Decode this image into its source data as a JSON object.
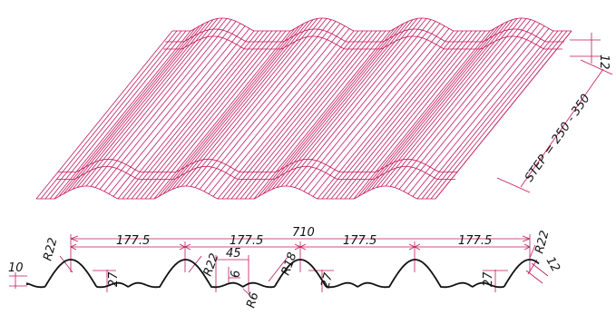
{
  "colors": {
    "line": "#c2185b",
    "profile": "#111111",
    "background": "#ffffff"
  },
  "labels": {
    "height_top": "12",
    "step": "STEP = 250 - 350",
    "total_width": "710",
    "pitch_1": "177.5",
    "pitch_2": "177.5",
    "pitch_3": "177.5",
    "pitch_4": "177.5",
    "height_10": "10",
    "radius_left": "R22",
    "rib_27_a": "27",
    "radius_mid": "R22",
    "rib_6": "6",
    "span_45": "45",
    "radius_6": "R6",
    "radius_18": "R18",
    "rib_27_b": "27",
    "rib_27_c": "27",
    "radius_right": "R22",
    "height_right": "12"
  }
}
